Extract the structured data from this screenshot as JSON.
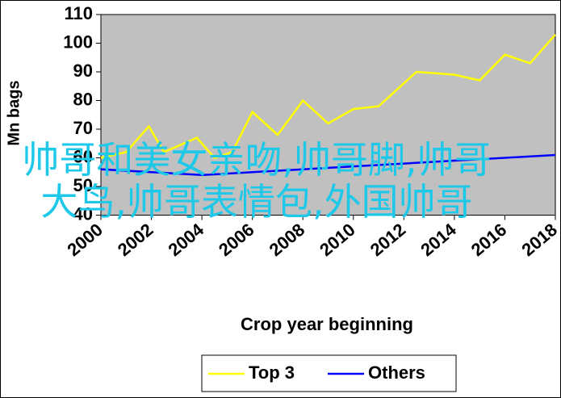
{
  "chart_data": {
    "type": "line",
    "ylabel": "Mn bags",
    "xlabel": "Crop year beginning",
    "xlim": [
      2000,
      2018
    ],
    "xticks": [
      2000,
      2002,
      2004,
      2006,
      2008,
      2010,
      2012,
      2014,
      2016,
      2018
    ],
    "ylim": [
      40,
      110
    ],
    "yticks": [
      40,
      50,
      60,
      70,
      80,
      90,
      100,
      110
    ],
    "series": [
      {
        "name": "Top 3",
        "color": "#ffff00",
        "x": [
          2000,
          2001,
          2001.9,
          2002.5,
          2003.8,
          2004.5,
          2005.2,
          2006,
          2007,
          2008,
          2009,
          2010,
          2011,
          2012,
          2012.5,
          2014,
          2015,
          2016,
          2017,
          2018
        ],
        "values": [
          60,
          62,
          71,
          62,
          67,
          60,
          62,
          76,
          68,
          80,
          72,
          77,
          78,
          86,
          90,
          89,
          87,
          96,
          93,
          103
        ]
      },
      {
        "name": "Others",
        "color": "#0000ff",
        "x": [
          2000,
          2002,
          2004,
          2006,
          2008,
          2010,
          2012,
          2014,
          2016,
          2018
        ],
        "values": [
          56,
          55,
          54,
          55,
          56,
          57,
          58,
          59,
          60,
          61
        ]
      }
    ]
  },
  "overlay_text": "帅哥和美女亲吻,帅哥脚,帅哥大鸟,帅哥表情包,外国帅哥"
}
